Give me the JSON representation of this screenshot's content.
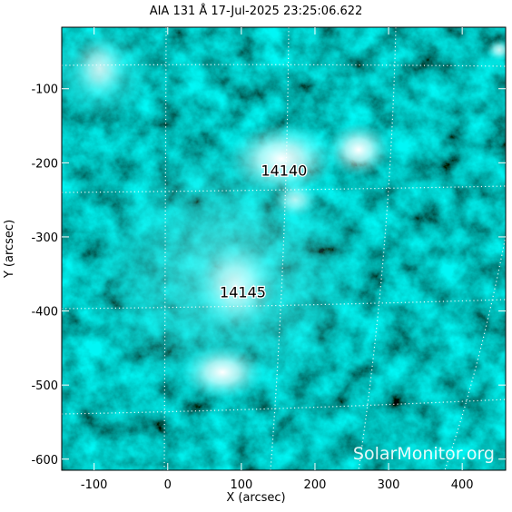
{
  "chart_data": {
    "type": "image",
    "title": "AIA 131 Å 17-Jul-2025 23:25:06.622",
    "x_label": "X (arcsec)",
    "y_label": "Y (arcsec)",
    "xlim": [
      -144,
      459
    ],
    "ylim": [
      -615,
      -17
    ],
    "xticks": [
      -100,
      0,
      100,
      200,
      300,
      400
    ],
    "yticks": [
      -100,
      -200,
      -300,
      -400,
      -500,
      -600
    ],
    "annotations": [
      {
        "text": "14140",
        "x": 158,
        "y": -210
      },
      {
        "text": "14145",
        "x": 102,
        "y": -374
      }
    ],
    "watermark": "SolarMonitor.org"
  }
}
